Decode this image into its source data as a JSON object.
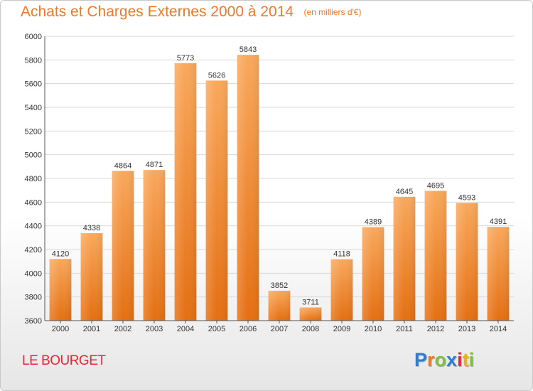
{
  "title": "Achats et Charges Externes 2000 à 2014",
  "subtitle": "(en milliers d'€)",
  "location": "LE BOURGET",
  "logo": {
    "text": "Proxiti",
    "letter_colors": [
      "#2a7fd4",
      "#f07824",
      "#7cc142",
      "#2a7fd4",
      "#ee2233",
      "#f0b400",
      "#7cc142"
    ]
  },
  "colors": {
    "bar": "#f07c1c",
    "title": "#f07824",
    "location": "#ee2233",
    "grid": "#d8d8d8",
    "axis_text": "#333333"
  },
  "chart_data": {
    "type": "bar",
    "title": "Achats et Charges Externes 2000 à 2014",
    "subtitle": "(en milliers d'€)",
    "categories": [
      "2000",
      "2001",
      "2002",
      "2003",
      "2004",
      "2005",
      "2006",
      "2007",
      "2008",
      "2009",
      "2010",
      "2011",
      "2012",
      "2013",
      "2014"
    ],
    "values": [
      4120,
      4338,
      4864,
      4871,
      5773,
      5626,
      5843,
      3852,
      3711,
      4118,
      4389,
      4645,
      4695,
      4593,
      4391
    ],
    "ylim": [
      3600,
      6000
    ],
    "yticks": [
      3600,
      3800,
      4000,
      4200,
      4400,
      4600,
      4800,
      5000,
      5200,
      5400,
      5600,
      5800,
      6000
    ],
    "grid": true,
    "data_labels": true
  }
}
